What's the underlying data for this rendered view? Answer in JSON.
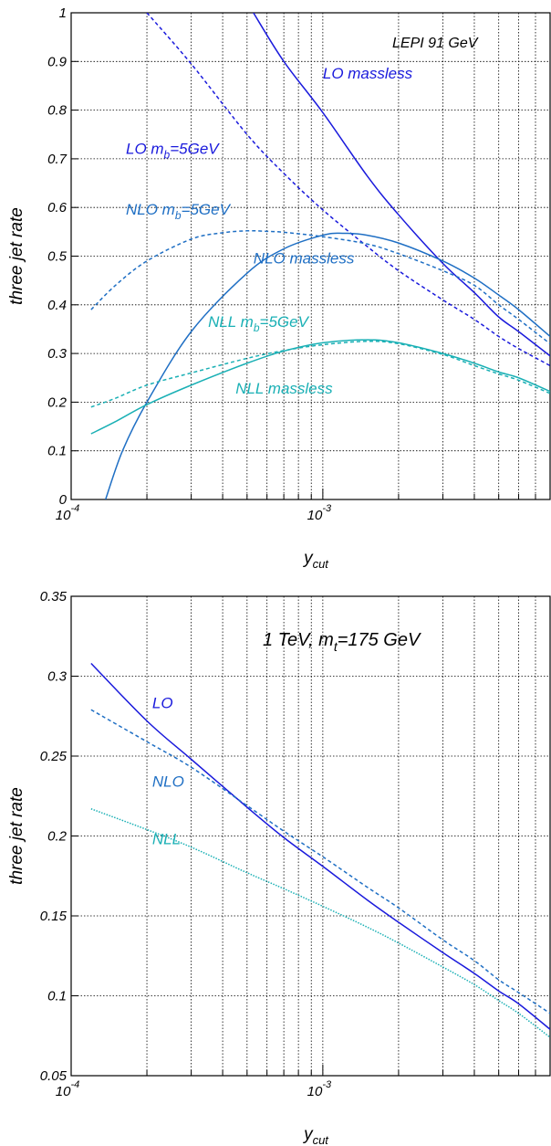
{
  "colors": {
    "dark_blue": "#1a1adc",
    "mid_blue": "#1f6fc4",
    "cyan": "#1ab0b5"
  },
  "chart_data": [
    {
      "type": "line",
      "title": "LEPI 91 GeV",
      "xlabel": "y",
      "xlabel_sub": "cut",
      "ylabel": "three jet rate",
      "xscale": "log",
      "xlim": [
        0.0001,
        0.008
      ],
      "ylim": [
        0,
        1
      ],
      "grid": true,
      "x_tick_labels": [
        {
          "base": "10",
          "exp": "-4",
          "value": 0.0001
        },
        {
          "base": "10",
          "exp": "-3",
          "value": 0.001
        }
      ],
      "y_tick_labels": [
        "0",
        "0.1",
        "0.2",
        "0.3",
        "0.4",
        "0.5",
        "0.6",
        "0.7",
        "0.8",
        "0.9",
        "1"
      ],
      "y_ticks": [
        0,
        0.1,
        0.2,
        0.3,
        0.4,
        0.5,
        0.6,
        0.7,
        0.8,
        0.9,
        1
      ],
      "annotations": [
        {
          "text": "LO massless",
          "color": "dark_blue",
          "at": [
            0.001,
            0.865
          ]
        },
        {
          "text": "LO m",
          "sub": "b",
          "rest": "=5GeV",
          "color": "dark_blue",
          "at": [
            0.000165,
            0.71
          ]
        },
        {
          "text": "NLO m",
          "sub": "b",
          "rest": "=5GeV",
          "color": "mid_blue",
          "at": [
            0.000165,
            0.585
          ]
        },
        {
          "text": "NLO massless",
          "color": "mid_blue",
          "at": [
            0.00053,
            0.485
          ]
        },
        {
          "text": "NLL m",
          "sub": "b",
          "rest": "=5GeV",
          "color": "cyan",
          "at": [
            0.00035,
            0.355
          ]
        },
        {
          "text": "NLL massless",
          "color": "cyan",
          "at": [
            0.00045,
            0.218
          ]
        }
      ],
      "series": [
        {
          "color": "dark_blue",
          "dash": "solid",
          "x": [
            0.00053,
            0.0007,
            0.001,
            0.0015,
            0.002,
            0.003,
            0.004,
            0.005,
            0.006,
            0.008
          ],
          "y": [
            1.0,
            0.9,
            0.795,
            0.665,
            0.585,
            0.485,
            0.425,
            0.375,
            0.345,
            0.295
          ]
        },
        {
          "color": "dark_blue",
          "dash": "dashed",
          "x": [
            0.0002,
            0.0003,
            0.0005,
            0.0007,
            0.001,
            0.0015,
            0.002,
            0.003,
            0.004,
            0.005,
            0.006,
            0.008
          ],
          "y": [
            1.0,
            0.895,
            0.75,
            0.67,
            0.595,
            0.52,
            0.47,
            0.41,
            0.37,
            0.335,
            0.31,
            0.275
          ]
        },
        {
          "color": "mid_blue",
          "dash": "solid",
          "x": [
            0.000137,
            0.00016,
            0.0002,
            0.0003,
            0.0005,
            0.0007,
            0.001,
            0.0012,
            0.0015,
            0.002,
            0.003,
            0.004,
            0.005,
            0.006,
            0.008
          ],
          "y": [
            0.0,
            0.1,
            0.2,
            0.345,
            0.465,
            0.515,
            0.543,
            0.547,
            0.543,
            0.527,
            0.49,
            0.455,
            0.42,
            0.39,
            0.335
          ]
        },
        {
          "color": "mid_blue",
          "dash": "dashed",
          "x": [
            0.00012,
            0.00015,
            0.0002,
            0.0003,
            0.0004,
            0.0005,
            0.0006,
            0.0007,
            0.001,
            0.0015,
            0.002,
            0.003,
            0.004,
            0.005,
            0.006,
            0.008
          ],
          "y": [
            0.39,
            0.44,
            0.49,
            0.535,
            0.548,
            0.552,
            0.551,
            0.549,
            0.54,
            0.525,
            0.505,
            0.47,
            0.44,
            0.4,
            0.37,
            0.32
          ]
        },
        {
          "color": "cyan",
          "dash": "solid",
          "x": [
            0.00012,
            0.00015,
            0.0002,
            0.0003,
            0.0005,
            0.0007,
            0.001,
            0.0015,
            0.002,
            0.003,
            0.004,
            0.005,
            0.006,
            0.008
          ],
          "y": [
            0.135,
            0.16,
            0.195,
            0.235,
            0.28,
            0.305,
            0.322,
            0.328,
            0.322,
            0.3,
            0.28,
            0.262,
            0.25,
            0.222
          ]
        },
        {
          "color": "cyan",
          "dash": "dashed",
          "x": [
            0.00012,
            0.00015,
            0.0002,
            0.0003,
            0.0005,
            0.0007,
            0.001,
            0.0015,
            0.002,
            0.003,
            0.004,
            0.005,
            0.006,
            0.008
          ],
          "y": [
            0.19,
            0.208,
            0.235,
            0.26,
            0.29,
            0.306,
            0.318,
            0.325,
            0.32,
            0.298,
            0.275,
            0.258,
            0.245,
            0.218
          ]
        }
      ]
    },
    {
      "type": "line",
      "title": "1 TeV, m",
      "title_sub": "t",
      "title_rest": "=175 GeV",
      "xlabel": "y",
      "xlabel_sub": "cut",
      "ylabel": "three jet rate",
      "xscale": "log",
      "xlim": [
        0.0001,
        0.008
      ],
      "ylim": [
        0.05,
        0.35
      ],
      "grid": true,
      "x_tick_labels": [
        {
          "base": "10",
          "exp": "-4",
          "value": 0.0001
        },
        {
          "base": "10",
          "exp": "-3",
          "value": 0.001
        }
      ],
      "y_tick_labels": [
        "0.05",
        "0.1",
        "0.15",
        "0.2",
        "0.25",
        "0.3",
        "0.35"
      ],
      "y_ticks": [
        0.05,
        0.1,
        0.15,
        0.2,
        0.25,
        0.3,
        0.35
      ],
      "annotations": [
        {
          "text": "LO",
          "color": "dark_blue",
          "at": [
            0.00021,
            0.28
          ]
        },
        {
          "text": "NLO",
          "color": "mid_blue",
          "at": [
            0.00021,
            0.231
          ]
        },
        {
          "text": "NLL",
          "color": "cyan",
          "at": [
            0.00021,
            0.195
          ]
        }
      ],
      "series": [
        {
          "color": "dark_blue",
          "dash": "solid",
          "x": [
            0.00012,
            0.0002,
            0.0003,
            0.0005,
            0.0007,
            0.001,
            0.0015,
            0.002,
            0.003,
            0.004,
            0.005,
            0.006,
            0.008
          ],
          "y": [
            0.308,
            0.272,
            0.248,
            0.218,
            0.199,
            0.181,
            0.16,
            0.146,
            0.127,
            0.114,
            0.103,
            0.095,
            0.079
          ]
        },
        {
          "color": "mid_blue",
          "dash": "dashed",
          "x": [
            0.00012,
            0.0002,
            0.0003,
            0.0005,
            0.0007,
            0.001,
            0.0015,
            0.002,
            0.003,
            0.004,
            0.005,
            0.006,
            0.008
          ],
          "y": [
            0.279,
            0.259,
            0.243,
            0.219,
            0.203,
            0.187,
            0.168,
            0.155,
            0.135,
            0.122,
            0.11,
            0.102,
            0.089
          ]
        },
        {
          "color": "cyan",
          "dash": "dotted",
          "x": [
            0.00012,
            0.0002,
            0.0003,
            0.0005,
            0.0007,
            0.001,
            0.0015,
            0.002,
            0.003,
            0.004,
            0.005,
            0.006,
            0.008
          ],
          "y": [
            0.217,
            0.204,
            0.193,
            0.177,
            0.167,
            0.156,
            0.143,
            0.133,
            0.118,
            0.107,
            0.097,
            0.089,
            0.074
          ]
        }
      ]
    }
  ]
}
